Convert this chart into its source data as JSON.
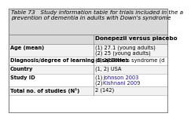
{
  "title": "Table 73   Study information table for trials included in the a\nprevention of dementia in adults with Down's syndrome",
  "header_col": "Donepezil versus placebo",
  "rows": [
    [
      "Total no. of studies (N¹)",
      "2 (142)"
    ],
    [
      "Study ID",
      "(1) Johnson 2003\n(2) Kishnani 2009"
    ],
    [
      "Country",
      "(1, 2) USA"
    ],
    [
      "Diagnosis/degree of learning disabilities",
      "(1, 2) Down's syndrome (d"
    ],
    [
      "Age (mean)",
      "(1) 27.1 (young adults)\n(2) 25 (young adults)"
    ]
  ],
  "link_rows": [
    1
  ],
  "bg_header_row": "#d9d9d9",
  "bg_odd": "#f2f2f2",
  "bg_even": "#ffffff",
  "bg_title": "#d9d9d9",
  "border_color": "#999999",
  "title_fontsize": 5.2,
  "cell_fontsize": 4.8,
  "header_fontsize": 5.2
}
